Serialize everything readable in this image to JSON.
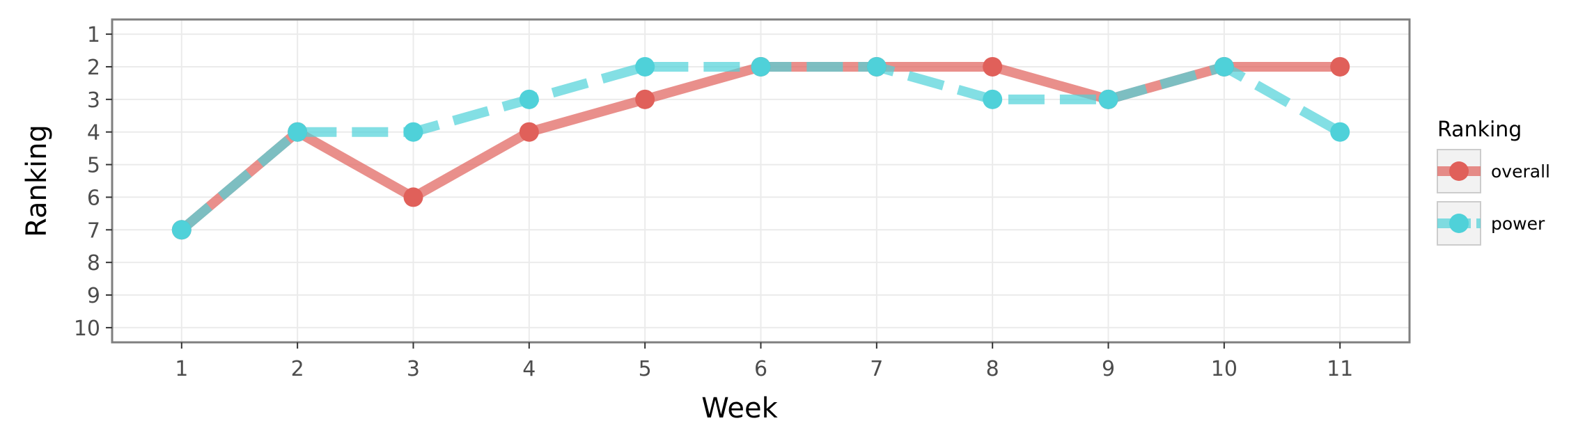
{
  "chart_data": {
    "type": "line",
    "xlabel": "Week",
    "ylabel": "Ranking",
    "x": [
      1,
      2,
      3,
      4,
      5,
      6,
      7,
      8,
      9,
      10,
      11
    ],
    "xlim": [
      0.4,
      11.6
    ],
    "ylim": [
      10.45,
      0.55
    ],
    "y_reversed": true,
    "y_ticks": [
      1,
      2,
      3,
      4,
      5,
      6,
      7,
      8,
      9,
      10
    ],
    "grid": true,
    "legend_title": "Ranking",
    "legend_position": "right",
    "series": [
      {
        "name": "overall",
        "values": [
          7,
          4,
          6,
          4,
          3,
          2,
          2,
          2,
          3,
          2,
          2
        ],
        "color": "#e0605a",
        "line_style": "solid"
      },
      {
        "name": "power",
        "values": [
          7,
          4,
          4,
          3,
          2,
          2,
          2,
          3,
          3,
          2,
          4
        ],
        "color": "#4fd1d9",
        "line_style": "dashed"
      }
    ]
  }
}
